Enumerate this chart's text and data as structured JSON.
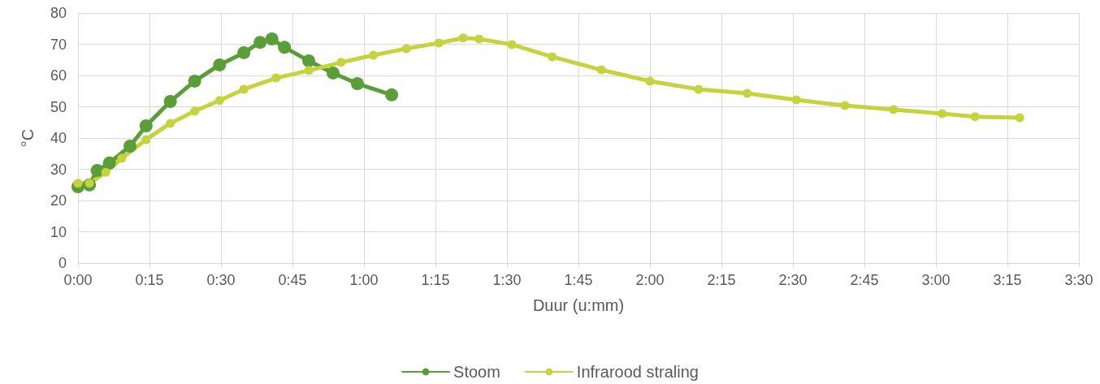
{
  "chart_data": {
    "type": "line",
    "xlabel": "Duur (u:mm)",
    "ylabel": "°C",
    "xlim": [
      0,
      3.5
    ],
    "xticks": [
      {
        "value": 0,
        "label": "0:00"
      },
      {
        "value": 0.25,
        "label": "0:15"
      },
      {
        "value": 0.5,
        "label": "0:30"
      },
      {
        "value": 0.75,
        "label": "0:45"
      },
      {
        "value": 1,
        "label": "1:00"
      },
      {
        "value": 1.25,
        "label": "1:15"
      },
      {
        "value": 1.5,
        "label": "1:30"
      },
      {
        "value": 1.75,
        "label": "1:45"
      },
      {
        "value": 2,
        "label": "2:00"
      },
      {
        "value": 2.25,
        "label": "2:15"
      },
      {
        "value": 2.5,
        "label": "2:30"
      },
      {
        "value": 2.75,
        "label": "2:45"
      },
      {
        "value": 3,
        "label": "3:00"
      },
      {
        "value": 3.25,
        "label": "3:15"
      },
      {
        "value": 3.5,
        "label": "3:30"
      }
    ],
    "ylim": [
      0,
      80
    ],
    "yticks": [
      0,
      10,
      20,
      30,
      40,
      50,
      60,
      70,
      80
    ],
    "grid": true,
    "legend": "bottom",
    "marker": "circle",
    "line_style": "solid",
    "series": [
      {
        "name": "Stoom",
        "color": "#5a9e3a",
        "x": [
          0,
          0.04,
          0.067,
          0.11,
          0.182,
          0.238,
          0.323,
          0.408,
          0.495,
          0.58,
          0.637,
          0.678,
          0.722,
          0.807,
          0.892,
          0.977,
          1.097
        ],
        "values": [
          24.4,
          25,
          29.6,
          32,
          37.4,
          43.9,
          51.7,
          58.2,
          63.4,
          67.3,
          70.6,
          71.7,
          69,
          64.7,
          60.8,
          57.4,
          53.8
        ]
      },
      {
        "name": "Infrarood straling",
        "color": "#c5d33e",
        "x": [
          0,
          0.04,
          0.097,
          0.153,
          0.238,
          0.323,
          0.408,
          0.495,
          0.58,
          0.693,
          0.807,
          0.92,
          1.033,
          1.148,
          1.262,
          1.347,
          1.403,
          1.517,
          1.658,
          1.83,
          2.0,
          2.17,
          2.34,
          2.512,
          2.682,
          2.852,
          3.022,
          3.137,
          3.293
        ],
        "values": [
          25.5,
          25.5,
          29,
          33.5,
          39.5,
          44.7,
          48.6,
          52,
          55.6,
          59.2,
          61.6,
          64.2,
          66.5,
          68.6,
          70.4,
          72,
          71.7,
          69.9,
          66,
          61.8,
          58.2,
          55.6,
          54.3,
          52.2,
          50.4,
          49.1,
          47.8,
          46.8,
          46.5
        ]
      }
    ]
  }
}
